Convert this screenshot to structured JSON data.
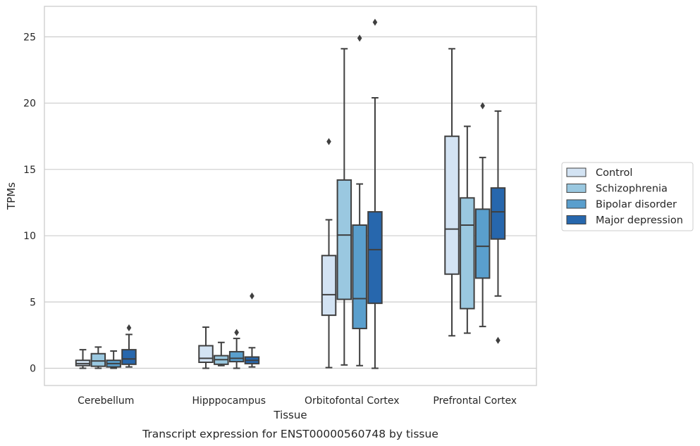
{
  "caption": "Transcript expression for ENST00000560748 by tissue",
  "chart_data": {
    "type": "box",
    "xlabel": "Tissue",
    "ylabel": "TPMs",
    "ylim": [
      -1.3,
      27.3
    ],
    "yticks": [
      0,
      5,
      10,
      15,
      20,
      25
    ],
    "grid": true,
    "legend_position": "right",
    "categories": [
      "Cerebellum",
      "Hipppocampus",
      "Orbitofontal Cortex",
      "Prefrontal Cortex"
    ],
    "series": [
      {
        "name": "Control",
        "color": "#d3e3f3",
        "boxes": [
          {
            "whislo": 0.0,
            "q1": 0.2,
            "med": 0.35,
            "q3": 0.6,
            "whishi": 1.4,
            "fliers": []
          },
          {
            "whislo": 0.0,
            "q1": 0.45,
            "med": 0.75,
            "q3": 1.7,
            "whishi": 3.1,
            "fliers": []
          },
          {
            "whislo": 0.05,
            "q1": 4.0,
            "med": 5.55,
            "q3": 8.5,
            "whishi": 11.2,
            "fliers": [
              17.1
            ]
          },
          {
            "whislo": 2.45,
            "q1": 7.1,
            "med": 10.5,
            "q3": 17.5,
            "whishi": 24.1,
            "fliers": []
          }
        ]
      },
      {
        "name": "Schizophrenia",
        "color": "#9ac8e0",
        "boxes": [
          {
            "whislo": 0.0,
            "q1": 0.15,
            "med": 0.55,
            "q3": 1.1,
            "whishi": 1.6,
            "fliers": []
          },
          {
            "whislo": 0.2,
            "q1": 0.3,
            "med": 0.65,
            "q3": 0.95,
            "whishi": 1.95,
            "fliers": []
          },
          {
            "whislo": 0.25,
            "q1": 5.2,
            "med": 10.05,
            "q3": 14.2,
            "whishi": 24.1,
            "fliers": []
          },
          {
            "whislo": 2.65,
            "q1": 4.5,
            "med": 10.8,
            "q3": 12.85,
            "whishi": 18.25,
            "fliers": []
          }
        ]
      },
      {
        "name": "Bipolar disorder",
        "color": "#5a9fcd",
        "boxes": [
          {
            "whislo": 0.0,
            "q1": 0.1,
            "med": 0.35,
            "q3": 0.6,
            "whishi": 1.3,
            "fliers": []
          },
          {
            "whislo": 0.0,
            "q1": 0.5,
            "med": 0.75,
            "q3": 1.25,
            "whishi": 2.25,
            "fliers": [
              2.7
            ]
          },
          {
            "whislo": 0.2,
            "q1": 3.0,
            "med": 5.25,
            "q3": 10.8,
            "whishi": 13.9,
            "fliers": [
              24.9
            ]
          },
          {
            "whislo": 3.15,
            "q1": 6.8,
            "med": 9.2,
            "q3": 12.0,
            "whishi": 15.9,
            "fliers": [
              19.8
            ]
          }
        ]
      },
      {
        "name": "Major depression",
        "color": "#2767ad",
        "boxes": [
          {
            "whislo": 0.1,
            "q1": 0.3,
            "med": 0.7,
            "q3": 1.4,
            "whishi": 2.55,
            "fliers": [
              3.05
            ]
          },
          {
            "whislo": 0.1,
            "q1": 0.35,
            "med": 0.6,
            "q3": 0.85,
            "whishi": 1.55,
            "fliers": [
              5.45
            ]
          },
          {
            "whislo": 0.0,
            "q1": 4.9,
            "med": 8.95,
            "q3": 11.8,
            "whishi": 20.4,
            "fliers": [
              26.1
            ]
          },
          {
            "whislo": 5.45,
            "q1": 9.75,
            "med": 11.8,
            "q3": 13.6,
            "whishi": 19.4,
            "fliers": [
              2.1
            ]
          }
        ]
      }
    ]
  }
}
